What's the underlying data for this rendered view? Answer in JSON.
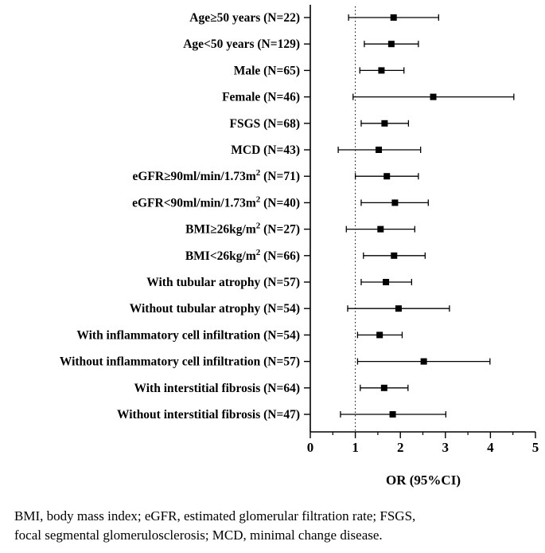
{
  "chart_data": {
    "type": "forest",
    "xlabel": "OR (95%CI)",
    "xlim": [
      0,
      5
    ],
    "x_ticks": [
      "0",
      "1",
      "2",
      "3",
      "4",
      "5"
    ],
    "reference_line": 1,
    "rows": [
      {
        "label": "Age≥50 years (N=22)",
        "or": 1.85,
        "lo": 0.85,
        "hi": 2.85
      },
      {
        "label": "Age<50 years (N=129)",
        "or": 1.8,
        "lo": 1.2,
        "hi": 2.4
      },
      {
        "label": "Male (N=65)",
        "or": 1.58,
        "lo": 1.1,
        "hi": 2.08
      },
      {
        "label": "Female (N=46)",
        "or": 2.73,
        "lo": 0.95,
        "hi": 4.52
      },
      {
        "label": "FSGS (N=68)",
        "or": 1.65,
        "lo": 1.13,
        "hi": 2.18
      },
      {
        "label": "MCD (N=43)",
        "or": 1.52,
        "lo": 0.62,
        "hi": 2.45
      },
      {
        "label": "eGFR≥90ml/min/1.73m2 (N=71)",
        "base": "eGFR≥90ml/min/1.73m",
        "sup": "2",
        "suffix": " (N=71)",
        "or": 1.7,
        "lo": 1.0,
        "hi": 2.4
      },
      {
        "label": "eGFR<90ml/min/1.73m2 (N=40)",
        "base": "eGFR<90ml/min/1.73m",
        "sup": "2",
        "suffix": " (N=40)",
        "or": 1.88,
        "lo": 1.13,
        "hi": 2.62
      },
      {
        "label": "BMI≥26kg/m2 (N=27)",
        "base": "BMI≥26kg/m",
        "sup": "2",
        "suffix": " (N=27)",
        "or": 1.56,
        "lo": 0.8,
        "hi": 2.32
      },
      {
        "label": "BMI<26kg/m2 (N=66)",
        "base": "BMI<26kg/m",
        "sup": "2",
        "suffix": " (N=66)",
        "or": 1.86,
        "lo": 1.18,
        "hi": 2.55
      },
      {
        "label": "With tubular atrophy (N=57)",
        "or": 1.68,
        "lo": 1.13,
        "hi": 2.25
      },
      {
        "label": "Without tubular atrophy  (N=54)",
        "or": 1.96,
        "lo": 0.83,
        "hi": 3.09
      },
      {
        "label": "With inflammatory cell infiltration (N=54)",
        "or": 1.54,
        "lo": 1.05,
        "hi": 2.04
      },
      {
        "label": "Without inflammatory cell infiltration (N=57)",
        "or": 2.52,
        "lo": 1.05,
        "hi": 3.99
      },
      {
        "label": "With interstitial fibrosis  (N=64)",
        "or": 1.64,
        "lo": 1.11,
        "hi": 2.17
      },
      {
        "label": "Without interstitial fibrosis (N=47)",
        "or": 1.83,
        "lo": 0.67,
        "hi": 3.01
      }
    ]
  },
  "footnote": {
    "line1": "BMI, body mass index; eGFR, estimated glomerular filtration rate; FSGS,",
    "line2": "focal segmental glomerulosclerosis; MCD, minimal change disease."
  }
}
